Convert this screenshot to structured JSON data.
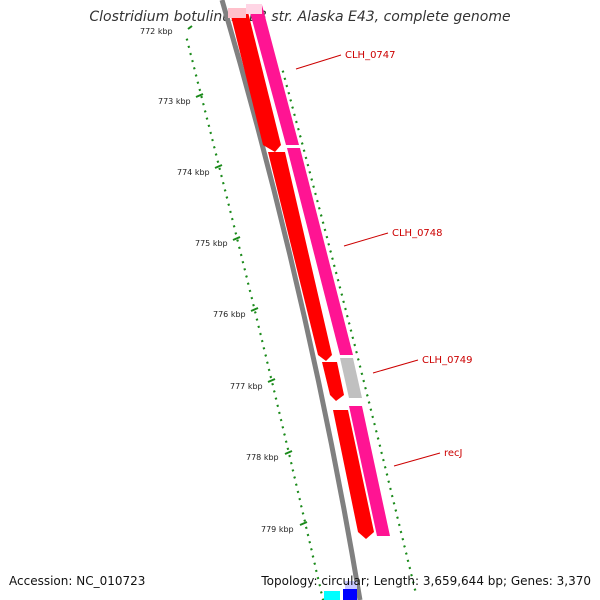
{
  "title": "Clostridium botulinum E3 str. Alaska E43, complete genome",
  "footer": {
    "accession": "Accession: NC_010723",
    "summary": "Topology: circular; Length: 3,659,644 bp; Genes: 3,370"
  },
  "ruler": {
    "ticks": [
      "772 kbp",
      "773 kbp",
      "774 kbp",
      "775 kbp",
      "776 kbp",
      "777 kbp",
      "778 kbp",
      "779 kbp"
    ]
  },
  "genes": [
    {
      "label": "CLH_0747",
      "color": "#ff1493"
    },
    {
      "label": "CLH_0748",
      "color": "#ff1493"
    },
    {
      "label": "CLH_0749",
      "color": "#c0c0c0"
    },
    {
      "label": "recJ",
      "color": "#ff1493"
    }
  ],
  "colors": {
    "backbone": "#808080",
    "cds": "#ff0000",
    "gene": "#ff1493",
    "pseudo": "#c0c0c0",
    "ruler": "#1a8a1a",
    "label": "#cc0000"
  }
}
